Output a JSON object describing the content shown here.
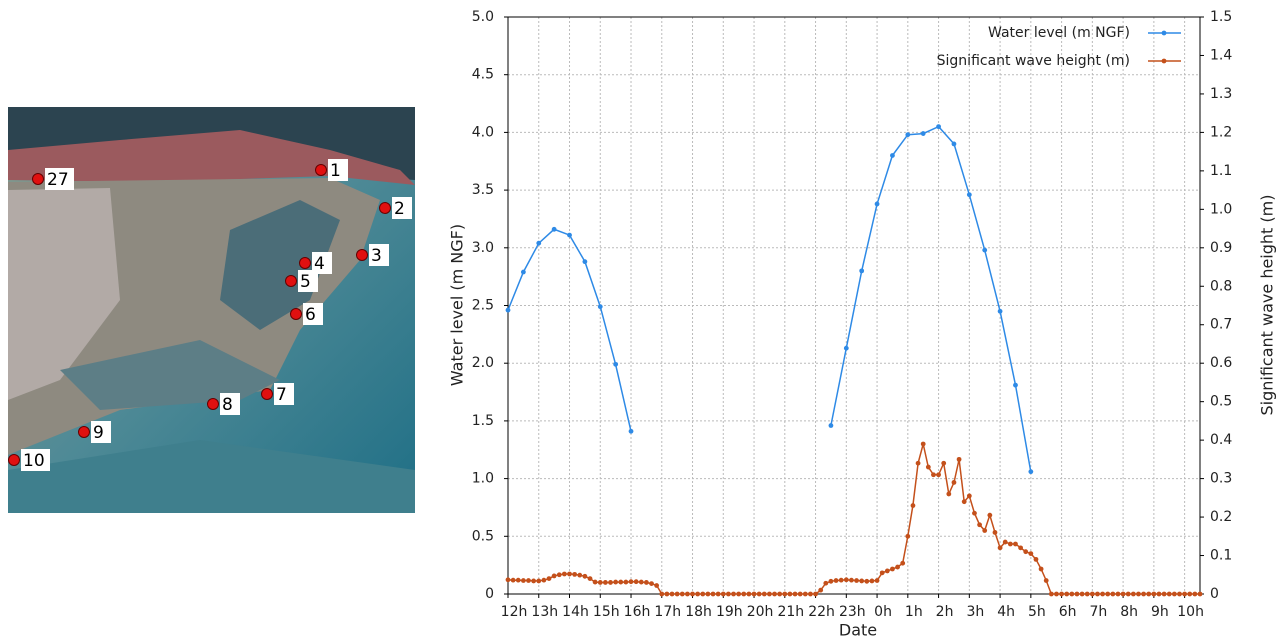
{
  "map": {
    "sites": [
      "1",
      "27",
      "2",
      "3",
      "4",
      "5",
      "6",
      "7",
      "8",
      "9",
      "10"
    ]
  },
  "chart_data": {
    "type": "line",
    "xlabel": "Date",
    "ylabel": "Water level (m NGF)",
    "y2label": "Significant wave height (m)",
    "xlim": [
      0,
      1350
    ],
    "xticks": [
      {
        "value": 0,
        "label": "12h"
      },
      {
        "value": 60,
        "label": "13h"
      },
      {
        "value": 120,
        "label": "14h"
      },
      {
        "value": 180,
        "label": "15h"
      },
      {
        "value": 240,
        "label": "16h"
      },
      {
        "value": 300,
        "label": "17h"
      },
      {
        "value": 360,
        "label": "18h"
      },
      {
        "value": 420,
        "label": "19h"
      },
      {
        "value": 480,
        "label": "20h"
      },
      {
        "value": 540,
        "label": "21h"
      },
      {
        "value": 600,
        "label": "22h"
      },
      {
        "value": 660,
        "label": "23h"
      },
      {
        "value": 720,
        "label": "0h"
      },
      {
        "value": 780,
        "label": "1h"
      },
      {
        "value": 840,
        "label": "2h"
      },
      {
        "value": 900,
        "label": "3h"
      },
      {
        "value": 960,
        "label": "4h"
      },
      {
        "value": 1020,
        "label": "5h"
      },
      {
        "value": 1080,
        "label": "6h"
      },
      {
        "value": 1140,
        "label": "7h"
      },
      {
        "value": 1200,
        "label": "8h"
      },
      {
        "value": 1260,
        "label": "9h"
      },
      {
        "value": 1320,
        "label": "10h"
      }
    ],
    "ylim": [
      0,
      5
    ],
    "yticks": [
      0,
      0.5,
      {
        "value": 1,
        "label": "1.0"
      },
      1.5,
      {
        "value": 2,
        "label": "2.0"
      },
      2.5,
      {
        "value": 3,
        "label": "3.0"
      },
      3.5,
      {
        "value": 4,
        "label": "4.0"
      },
      4.5,
      {
        "value": 5,
        "label": "5.0"
      }
    ],
    "y2lim": [
      0,
      1.5
    ],
    "y2ticks": [
      0,
      0.1,
      0.2,
      0.3,
      0.4,
      0.5,
      0.6,
      0.7,
      0.8,
      0.9,
      {
        "value": 1,
        "label": "1.0"
      },
      1.1,
      1.2,
      1.3,
      1.4,
      1.5
    ],
    "grid": true,
    "legend": "upper right",
    "series": [
      {
        "name": "Water level (m NGF)",
        "color": "#2e8ae6",
        "x": [
          0,
          30,
          60,
          90,
          120,
          150,
          180,
          210,
          240,
          270,
          300,
          330,
          360,
          390,
          420,
          450,
          480,
          510,
          540,
          570,
          600,
          630,
          660,
          690,
          720,
          750,
          780,
          810,
          840,
          870,
          900,
          930,
          960,
          990,
          1020
        ],
        "values": [
          2.46,
          2.79,
          3.04,
          3.16,
          3.11,
          2.88,
          2.49,
          1.99,
          1.41,
          null,
          null,
          null,
          null,
          null,
          null,
          null,
          null,
          null,
          null,
          null,
          null,
          1.46,
          2.13,
          2.8,
          3.38,
          3.8,
          3.98,
          3.99,
          4.05,
          3.9,
          3.46,
          2.98,
          2.45,
          1.81,
          1.06
        ]
      },
      {
        "name": "Significant wave height (m)",
        "color": "#c4501b",
        "axis": "y2",
        "x": [
          0,
          10,
          20,
          30,
          40,
          50,
          60,
          70,
          80,
          90,
          100,
          110,
          120,
          130,
          140,
          150,
          160,
          170,
          180,
          190,
          200,
          210,
          220,
          230,
          240,
          250,
          260,
          270,
          280,
          290,
          300,
          310,
          320,
          330,
          340,
          350,
          360,
          370,
          380,
          390,
          400,
          410,
          420,
          430,
          440,
          450,
          460,
          470,
          480,
          490,
          500,
          510,
          520,
          530,
          540,
          550,
          560,
          570,
          580,
          590,
          600,
          610,
          620,
          630,
          640,
          650,
          660,
          670,
          680,
          690,
          700,
          710,
          720,
          730,
          740,
          750,
          760,
          770,
          780,
          790,
          800,
          810,
          820,
          830,
          840,
          850,
          860,
          870,
          880,
          890,
          900,
          910,
          920,
          930,
          940,
          950,
          960,
          970,
          980,
          990,
          1000,
          1010,
          1020,
          1030,
          1040,
          1050,
          1060,
          1070,
          1080,
          1090,
          1100,
          1110,
          1120,
          1130,
          1140,
          1150,
          1160,
          1170,
          1180,
          1190,
          1200,
          1210,
          1220,
          1230,
          1240,
          1250,
          1260,
          1270,
          1280,
          1290,
          1300,
          1310,
          1320,
          1330,
          1340,
          1350
        ],
        "values": [
          0.037,
          0.036,
          0.036,
          0.035,
          0.035,
          0.034,
          0.034,
          0.036,
          0.04,
          0.047,
          0.05,
          0.052,
          0.052,
          0.051,
          0.049,
          0.046,
          0.04,
          0.031,
          0.03,
          0.03,
          0.03,
          0.031,
          0.031,
          0.031,
          0.032,
          0.032,
          0.031,
          0.03,
          0.027,
          0.022,
          0,
          0,
          0,
          0,
          0,
          0,
          0,
          0,
          0,
          0,
          0,
          0,
          0,
          0,
          0,
          0,
          0,
          0,
          0,
          0,
          0,
          0,
          0,
          0,
          0,
          0,
          0,
          0,
          0,
          0,
          0,
          0.01,
          0.028,
          0.033,
          0.035,
          0.036,
          0.037,
          0.036,
          0.035,
          0.034,
          0.033,
          0.034,
          0.035,
          0.055,
          0.06,
          0.065,
          0.07,
          0.08,
          0.15,
          0.23,
          0.34,
          0.39,
          0.33,
          0.31,
          0.31,
          0.34,
          0.26,
          0.29,
          0.35,
          0.24,
          0.255,
          0.21,
          0.18,
          0.165,
          0.205,
          0.16,
          0.12,
          0.135,
          0.13,
          0.13,
          0.12,
          0.11,
          0.105,
          0.09,
          0.065,
          0.035,
          0,
          0,
          0,
          0,
          0,
          0,
          0,
          0,
          0,
          0,
          0,
          0,
          0,
          0,
          0,
          0,
          0,
          0,
          0,
          0,
          0,
          0,
          0,
          0,
          0,
          0,
          0,
          0,
          0,
          0
        ]
      }
    ]
  }
}
